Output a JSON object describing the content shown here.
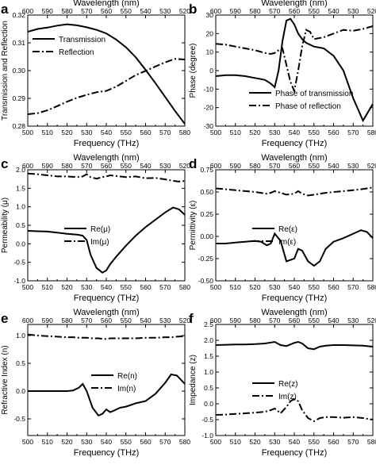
{
  "chart_data": [
    {
      "panel_label": "a",
      "type": "line",
      "x_top_label": "Wavelength (nm)",
      "xlabel": "Frequency (THz)",
      "ylabel": "Transmission and Reflection",
      "xlim": [
        500,
        580
      ],
      "xticks": [
        "500",
        "510",
        "520",
        "530",
        "540",
        "550",
        "560",
        "570",
        "580"
      ],
      "top_ticks": [
        "600",
        "590",
        "580",
        "570",
        "560",
        "550",
        "540",
        "530",
        "520"
      ],
      "ylim": [
        0.28,
        0.32
      ],
      "yticks": [
        "0.28",
        "0.29",
        "0.30",
        "0.31",
        "0.32"
      ],
      "legend_position": "upper-left",
      "x": [
        500,
        505,
        510,
        515,
        520,
        525,
        530,
        535,
        540,
        545,
        550,
        555,
        560,
        565,
        570,
        575,
        580
      ],
      "series": [
        {
          "name": "Transmission",
          "style": "solid",
          "values": [
            0.314,
            0.315,
            0.3155,
            0.3162,
            0.3167,
            0.3163,
            0.3156,
            0.3147,
            0.3134,
            0.3112,
            0.3084,
            0.3048,
            0.3003,
            0.2955,
            0.2905,
            0.2855,
            0.2808
          ]
        },
        {
          "name": "Reflection",
          "style": "dashdot",
          "values": [
            0.2843,
            0.2847,
            0.2857,
            0.2872,
            0.2888,
            0.2902,
            0.2913,
            0.2922,
            0.2927,
            0.2942,
            0.2963,
            0.2984,
            0.2999,
            0.3015,
            0.303,
            0.3042,
            0.304
          ]
        }
      ]
    },
    {
      "panel_label": "b",
      "type": "line",
      "x_top_label": "Wavelength (nm)",
      "xlabel": "Frequency (THz)",
      "ylabel": "Phase (degree)",
      "xlim": [
        500,
        580
      ],
      "xticks": [
        "500",
        "510",
        "520",
        "530",
        "540",
        "550",
        "560",
        "570",
        "580"
      ],
      "top_ticks": [
        "600",
        "590",
        "580",
        "570",
        "560",
        "550",
        "540",
        "530",
        "520"
      ],
      "ylim": [
        -30,
        30
      ],
      "yticks": [
        "-30",
        "-20",
        "-10",
        "0",
        "10",
        "20",
        "30"
      ],
      "legend_position": "lower-center",
      "x": [
        500,
        505,
        510,
        515,
        520,
        525,
        528,
        530,
        532,
        534,
        536,
        538,
        540,
        542,
        544,
        546,
        548,
        550,
        555,
        560,
        565,
        570,
        575,
        580
      ],
      "series": [
        {
          "name": "Phase of transmission",
          "style": "solid",
          "values": [
            -3,
            -2.5,
            -2.5,
            -3,
            -4,
            -5,
            -7,
            -9,
            0,
            16,
            27,
            28,
            25,
            20,
            17,
            15,
            14,
            13,
            12,
            8,
            0,
            -15,
            -27,
            -18
          ]
        },
        {
          "name": "Phase of reflection",
          "style": "dashdot",
          "values": [
            14.5,
            14,
            13,
            12,
            11,
            9.5,
            9,
            9.5,
            11,
            12,
            3,
            -6,
            -11,
            0,
            13,
            22,
            21,
            17,
            18,
            20,
            22,
            21.5,
            22.5,
            24
          ]
        }
      ]
    },
    {
      "panel_label": "c",
      "type": "line",
      "x_top_label": "Wavelength (nm)",
      "xlabel": "Frequency (THz)",
      "ylabel": "Permeability (μ)",
      "xlim": [
        500,
        580
      ],
      "xticks": [
        "500",
        "510",
        "520",
        "530",
        "540",
        "550",
        "560",
        "570",
        "580"
      ],
      "top_ticks": [
        "600",
        "590",
        "580",
        "570",
        "560",
        "550",
        "540",
        "530",
        "520"
      ],
      "ylim": [
        -1.0,
        2.0
      ],
      "yticks": [
        "-1.0",
        "-0.5",
        "0.0",
        "0.5",
        "1.0",
        "1.5",
        "2.0"
      ],
      "legend_position": "center",
      "x": [
        500,
        505,
        510,
        515,
        520,
        525,
        528,
        530,
        532,
        535,
        538,
        540,
        542,
        545,
        550,
        555,
        560,
        565,
        570,
        574,
        577,
        580
      ],
      "series": [
        {
          "name": "Re(μ)",
          "style": "solid",
          "values": [
            0.35,
            0.34,
            0.33,
            0.3,
            0.27,
            0.25,
            0.22,
            0.1,
            -0.3,
            -0.65,
            -0.78,
            -0.72,
            -0.55,
            -0.35,
            -0.05,
            0.22,
            0.45,
            0.65,
            0.85,
            0.98,
            0.93,
            0.78
          ]
        },
        {
          "name": "Im(μ)",
          "style": "dashdot",
          "values": [
            1.9,
            1.88,
            1.85,
            1.82,
            1.82,
            1.8,
            1.82,
            1.88,
            1.8,
            1.76,
            1.8,
            1.82,
            1.85,
            1.83,
            1.8,
            1.82,
            1.77,
            1.78,
            1.74,
            1.7,
            1.68,
            1.7
          ]
        }
      ]
    },
    {
      "panel_label": "d",
      "type": "line",
      "x_top_label": "Wavelength (nm)",
      "xlabel": "Frequency (THz)",
      "ylabel": "Permittivity (ε)",
      "xlim": [
        500,
        580
      ],
      "xticks": [
        "500",
        "510",
        "520",
        "530",
        "540",
        "550",
        "560",
        "570",
        "580"
      ],
      "top_ticks": [
        "600",
        "590",
        "580",
        "570",
        "560",
        "550",
        "540",
        "530",
        "520"
      ],
      "ylim": [
        -0.5,
        0.75
      ],
      "yticks": [
        "-0.50",
        "-0.25",
        "0.00",
        "0.25",
        "0.50",
        "0.75"
      ],
      "legend_position": "center",
      "x": [
        500,
        505,
        510,
        515,
        520,
        523,
        526,
        528,
        530,
        533,
        536,
        540,
        542,
        544,
        547,
        550,
        553,
        556,
        560,
        565,
        570,
        574,
        577,
        580
      ],
      "series": [
        {
          "name": "Re(ε)",
          "style": "solid",
          "values": [
            -0.08,
            -0.08,
            -0.07,
            -0.06,
            -0.05,
            -0.06,
            -0.1,
            -0.08,
            0.03,
            -0.05,
            -0.28,
            -0.25,
            -0.14,
            -0.16,
            -0.28,
            -0.33,
            -0.28,
            -0.14,
            -0.06,
            -0.02,
            0.03,
            0.07,
            0.05,
            -0.02
          ]
        },
        {
          "name": "Im(ε)",
          "style": "dashdot",
          "values": [
            0.54,
            0.53,
            0.52,
            0.51,
            0.5,
            0.49,
            0.48,
            0.49,
            0.51,
            0.49,
            0.47,
            0.48,
            0.51,
            0.48,
            0.46,
            0.47,
            0.48,
            0.49,
            0.5,
            0.51,
            0.52,
            0.53,
            0.54,
            0.55
          ]
        }
      ]
    },
    {
      "panel_label": "e",
      "type": "line",
      "x_top_label": "Wavelength (nm)",
      "xlabel": "Frequency (THz)",
      "ylabel": "Refractive Index (n)",
      "xlim": [
        500,
        580
      ],
      "xticks": [
        "500",
        "510",
        "520",
        "530",
        "540",
        "550",
        "560",
        "570",
        "580"
      ],
      "top_ticks": [
        "600",
        "590",
        "580",
        "570",
        "560",
        "550",
        "540",
        "530",
        "520"
      ],
      "ylim": [
        -0.8,
        1.2
      ],
      "yticks": [
        "-0.5",
        "0.0",
        "0.5",
        "1.0"
      ],
      "legend_position": "center-right",
      "x": [
        500,
        505,
        510,
        515,
        520,
        523,
        526,
        528,
        530,
        533,
        536,
        538,
        540,
        542,
        544,
        547,
        550,
        555,
        560,
        565,
        570,
        573,
        576,
        580
      ],
      "series": [
        {
          "name": "Re(n)",
          "style": "solid",
          "values": [
            0.0,
            0.0,
            0.0,
            0.0,
            0.0,
            0.01,
            0.06,
            0.13,
            0.0,
            -0.3,
            -0.44,
            -0.41,
            -0.33,
            -0.38,
            -0.35,
            -0.3,
            -0.28,
            -0.22,
            -0.18,
            -0.05,
            0.15,
            0.3,
            0.28,
            0.13
          ]
        },
        {
          "name": "Im(n)",
          "style": "dashdot",
          "values": [
            1.02,
            1.0,
            0.99,
            0.98,
            0.97,
            0.97,
            0.96,
            0.96,
            0.96,
            0.95,
            0.95,
            0.94,
            0.94,
            0.95,
            0.95,
            0.95,
            0.95,
            0.95,
            0.96,
            0.96,
            0.97,
            0.97,
            0.98,
            0.99
          ]
        }
      ]
    },
    {
      "panel_label": "f",
      "type": "line",
      "x_top_label": "Wavelength (nm)",
      "xlabel": "Frequency (THz)",
      "ylabel": "Impedance (z)",
      "xlim": [
        500,
        580
      ],
      "xticks": [
        "500",
        "510",
        "520",
        "530",
        "540",
        "550",
        "560",
        "570",
        "580"
      ],
      "top_ticks": [
        "600",
        "590",
        "580",
        "570",
        "560",
        "550",
        "540",
        "530",
        "520"
      ],
      "ylim": [
        -1.0,
        2.5
      ],
      "yticks": [
        "-1.0",
        "-0.5",
        "0.0",
        "0.5",
        "1.0",
        "1.5",
        "2.0",
        "2.5"
      ],
      "legend_position": "center",
      "x": [
        500,
        505,
        510,
        515,
        520,
        525,
        528,
        530,
        533,
        536,
        538,
        540,
        542,
        544,
        547,
        550,
        553,
        556,
        560,
        565,
        570,
        575,
        580
      ],
      "series": [
        {
          "name": "Re(z)",
          "style": "solid",
          "values": [
            1.85,
            1.86,
            1.87,
            1.87,
            1.88,
            1.9,
            1.93,
            1.95,
            1.85,
            1.82,
            1.87,
            1.92,
            1.95,
            1.9,
            1.75,
            1.72,
            1.8,
            1.83,
            1.85,
            1.85,
            1.84,
            1.83,
            1.8
          ]
        },
        {
          "name": "Im(z)",
          "style": "dashdot",
          "values": [
            -0.35,
            -0.34,
            -0.32,
            -0.3,
            -0.28,
            -0.25,
            -0.2,
            -0.15,
            -0.3,
            -0.1,
            0.08,
            0.15,
            0.08,
            -0.2,
            -0.45,
            -0.55,
            -0.45,
            -0.42,
            -0.42,
            -0.44,
            -0.42,
            -0.45,
            -0.5
          ]
        }
      ]
    }
  ]
}
